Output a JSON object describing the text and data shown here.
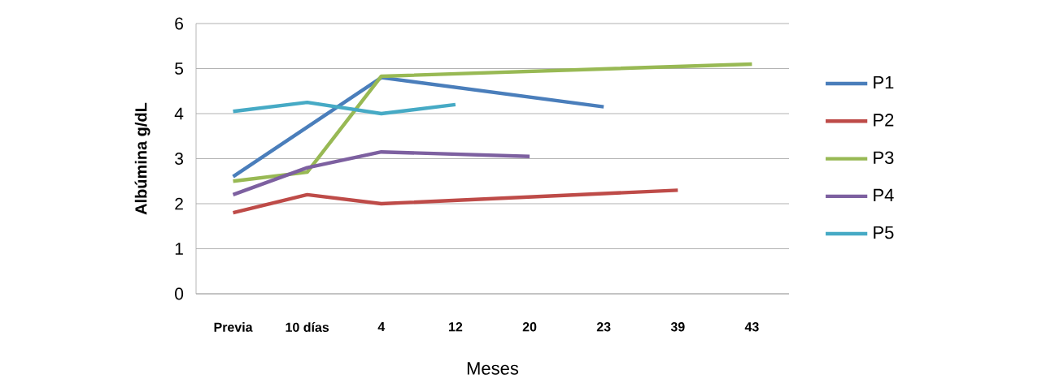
{
  "chart_data": {
    "type": "line",
    "xlabel": "Meses",
    "ylabel": "Albúmina g/dL",
    "categories": [
      "Previa",
      "10 días",
      "4",
      "12",
      "20",
      "23",
      "39",
      "43"
    ],
    "ylim": [
      0,
      6
    ],
    "yticks": [
      0,
      1,
      2,
      3,
      4,
      5,
      6
    ],
    "grid": "y",
    "legend": "right",
    "series": [
      {
        "name": "P1",
        "color": "#4a7ebb",
        "values": [
          2.6,
          null,
          4.8,
          null,
          null,
          4.15,
          null,
          null
        ]
      },
      {
        "name": "P2",
        "color": "#be4b48",
        "values": [
          1.8,
          2.2,
          2.0,
          null,
          null,
          null,
          2.3,
          null
        ]
      },
      {
        "name": "P3",
        "color": "#98b954",
        "values": [
          2.5,
          2.7,
          4.83,
          null,
          null,
          null,
          null,
          5.1
        ]
      },
      {
        "name": "P4",
        "color": "#7d60a0",
        "values": [
          2.2,
          2.8,
          3.15,
          null,
          3.05,
          null,
          null,
          null
        ]
      },
      {
        "name": "P5",
        "color": "#46aac5",
        "values": [
          4.05,
          4.25,
          4.0,
          4.2,
          null,
          null,
          null,
          null
        ]
      }
    ]
  }
}
